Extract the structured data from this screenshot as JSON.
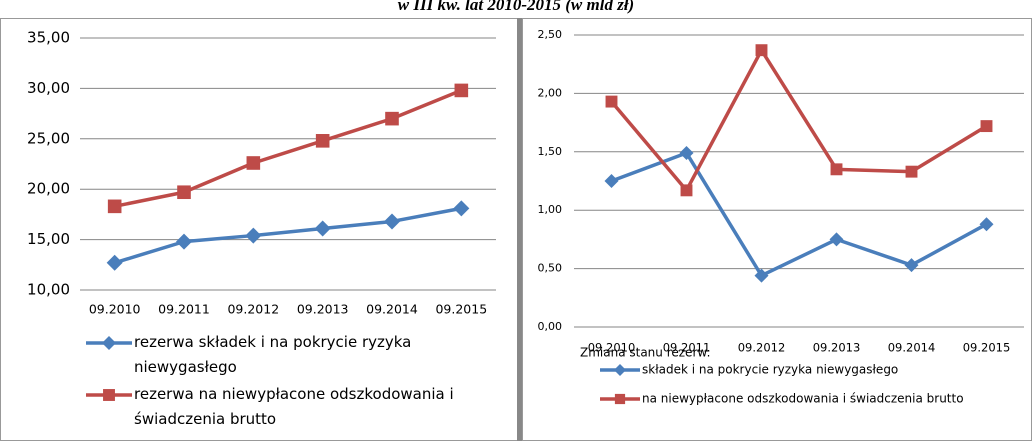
{
  "title": "w III kw. lat 2010-2015 (w mld zł)",
  "chart_data": [
    {
      "type": "line",
      "categories": [
        "09.2010",
        "09.2011",
        "09.2012",
        "09.2013",
        "09.2014",
        "09.2015"
      ],
      "series": [
        {
          "name": "rezerwa składek i na pokrycie ryzyka niewygasłego",
          "color": "#4a7ebb",
          "marker": "diamond",
          "values": [
            12.7,
            14.8,
            15.4,
            16.1,
            16.8,
            18.1
          ]
        },
        {
          "name": "rezerwa na niewypłacone odszkodowania i świadczenia brutto",
          "color": "#be4b48",
          "marker": "square",
          "values": [
            18.3,
            19.7,
            22.6,
            24.8,
            27.0,
            29.8
          ]
        }
      ],
      "ylim": [
        10,
        35
      ],
      "yticks": [
        {
          "value": 10,
          "label": "10,00"
        },
        {
          "value": 15,
          "label": "15,00"
        },
        {
          "value": 20,
          "label": "20,00"
        },
        {
          "value": 25,
          "label": "25,00"
        },
        {
          "value": 30,
          "label": "30,00"
        },
        {
          "value": 35,
          "label": "35,00"
        }
      ],
      "grid": true,
      "legend": "bottom"
    },
    {
      "type": "line",
      "categories": [
        "09.2010",
        "09.2011",
        "09.2012",
        "09.2013",
        "09.2014",
        "09.2015"
      ],
      "legend_title": "Zmiana stanu rezerw:",
      "series": [
        {
          "name": "składek i na pokrycie ryzyka niewygasłego",
          "color": "#4a7ebb",
          "marker": "diamond",
          "values": [
            1.25,
            1.49,
            0.44,
            0.75,
            0.53,
            0.88
          ]
        },
        {
          "name": "na niewypłacone odszkodowania i świadczenia brutto",
          "color": "#be4b48",
          "marker": "square",
          "values": [
            1.93,
            1.17,
            2.37,
            1.35,
            1.33,
            1.72
          ]
        }
      ],
      "ylim": [
        0,
        2.5
      ],
      "yticks": [
        {
          "value": 0,
          "label": "0,00"
        },
        {
          "value": 0.5,
          "label": "0,50"
        },
        {
          "value": 1,
          "label": "1,00"
        },
        {
          "value": 1.5,
          "label": "1,50"
        },
        {
          "value": 2,
          "label": "2,00"
        },
        {
          "value": 2.5,
          "label": "2,50"
        }
      ],
      "grid": true,
      "legend": "bottom"
    }
  ]
}
